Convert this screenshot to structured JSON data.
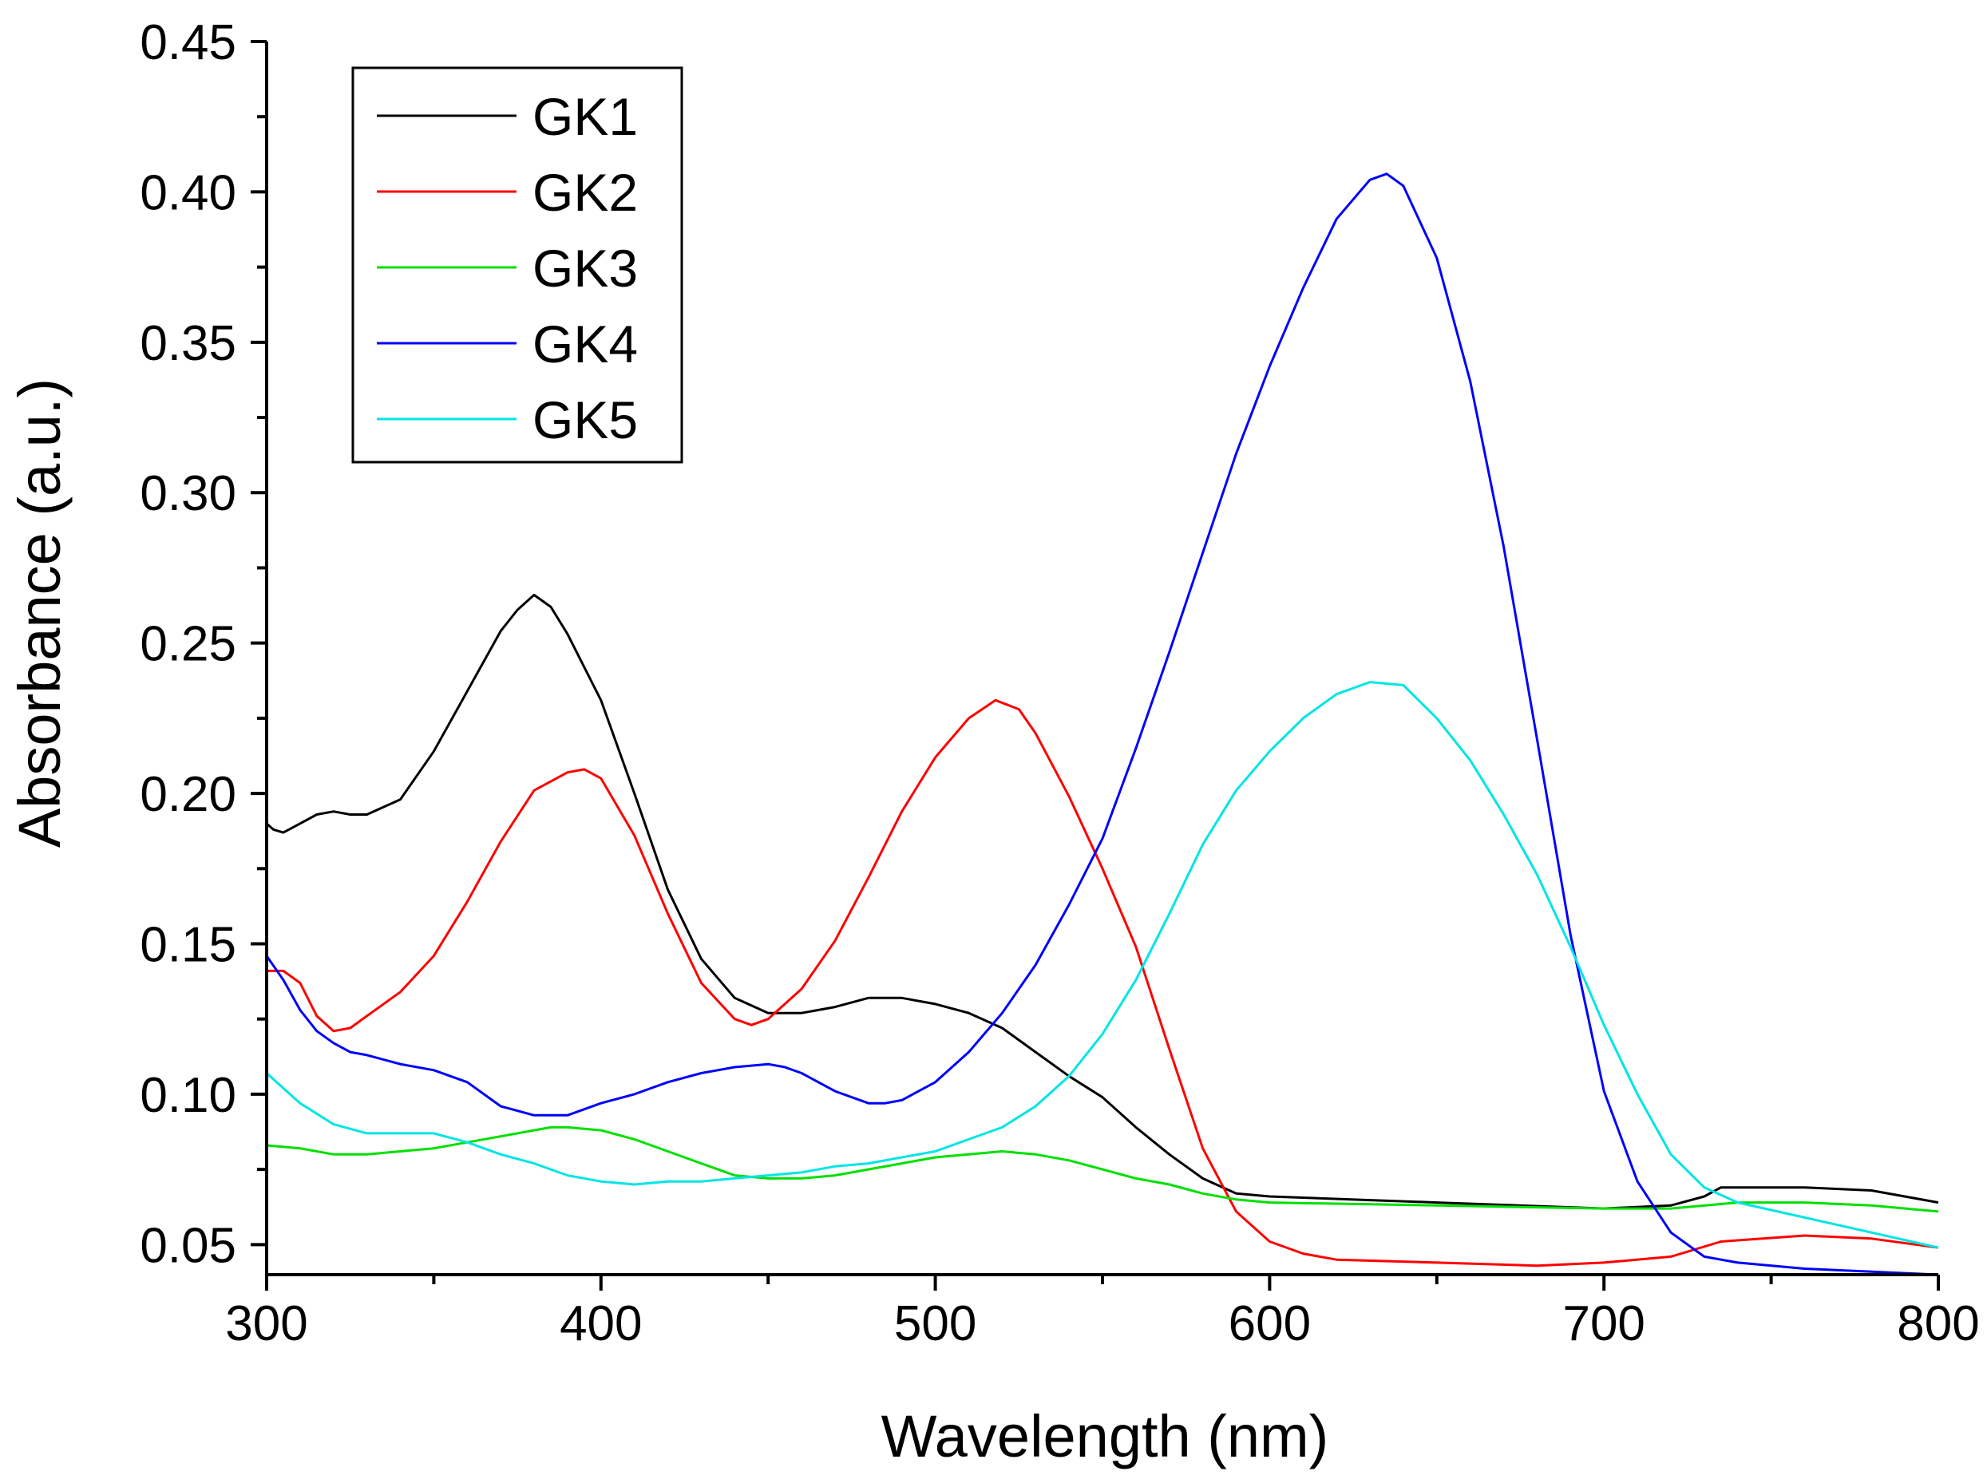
{
  "chart_data": {
    "type": "line",
    "title": "",
    "xlabel": "Wavelength (nm)",
    "ylabel": "Absorbance (a.u.)",
    "xlim": [
      300,
      800
    ],
    "ylim": [
      0.04,
      0.45
    ],
    "xticks": [
      300,
      400,
      500,
      600,
      700,
      800
    ],
    "xtick_labels": [
      "300",
      "400",
      "500",
      "600",
      "700",
      "800"
    ],
    "yticks": [
      0.05,
      0.1,
      0.15,
      0.2,
      0.25,
      0.3,
      0.35,
      0.4,
      0.45
    ],
    "ytick_labels": [
      "0.05",
      "0.10",
      "0.15",
      "0.20",
      "0.25",
      "0.30",
      "0.35",
      "0.40",
      "0.45"
    ],
    "grid": false,
    "legend_position": "top-left",
    "series": [
      {
        "name": "GK1",
        "color": "#000000",
        "x": [
          300,
          302,
          305,
          310,
          315,
          320,
          325,
          330,
          340,
          350,
          360,
          370,
          375,
          380,
          385,
          390,
          400,
          410,
          420,
          430,
          440,
          450,
          460,
          470,
          480,
          490,
          500,
          510,
          520,
          530,
          540,
          550,
          560,
          570,
          580,
          590,
          600,
          650,
          700,
          720,
          730,
          735,
          760,
          780,
          800
        ],
        "y": [
          0.19,
          0.188,
          0.187,
          0.19,
          0.193,
          0.194,
          0.193,
          0.193,
          0.198,
          0.214,
          0.234,
          0.254,
          0.261,
          0.266,
          0.262,
          0.253,
          0.231,
          0.2,
          0.168,
          0.145,
          0.132,
          0.127,
          0.127,
          0.129,
          0.132,
          0.132,
          0.13,
          0.127,
          0.122,
          0.114,
          0.106,
          0.099,
          0.089,
          0.08,
          0.072,
          0.067,
          0.066,
          0.064,
          0.062,
          0.063,
          0.066,
          0.069,
          0.069,
          0.068,
          0.064
        ]
      },
      {
        "name": "GK2",
        "color": "#ff0000",
        "x": [
          300,
          305,
          310,
          315,
          320,
          325,
          330,
          340,
          350,
          360,
          370,
          380,
          390,
          395,
          400,
          410,
          420,
          430,
          440,
          445,
          450,
          460,
          470,
          480,
          490,
          500,
          510,
          518,
          525,
          530,
          540,
          550,
          560,
          570,
          580,
          590,
          600,
          610,
          620,
          650,
          680,
          700,
          720,
          735,
          760,
          780,
          800
        ],
        "y": [
          0.141,
          0.141,
          0.137,
          0.126,
          0.121,
          0.122,
          0.126,
          0.134,
          0.146,
          0.164,
          0.184,
          0.201,
          0.207,
          0.208,
          0.205,
          0.186,
          0.16,
          0.137,
          0.125,
          0.123,
          0.125,
          0.135,
          0.151,
          0.172,
          0.194,
          0.212,
          0.225,
          0.231,
          0.228,
          0.22,
          0.199,
          0.175,
          0.149,
          0.115,
          0.082,
          0.061,
          0.051,
          0.047,
          0.045,
          0.044,
          0.043,
          0.044,
          0.046,
          0.051,
          0.053,
          0.052,
          0.049
        ]
      },
      {
        "name": "GK3",
        "color": "#00e000",
        "x": [
          300,
          310,
          320,
          330,
          340,
          350,
          360,
          370,
          380,
          385,
          390,
          400,
          410,
          420,
          430,
          440,
          450,
          460,
          470,
          480,
          490,
          500,
          510,
          520,
          530,
          540,
          550,
          560,
          570,
          580,
          590,
          600,
          650,
          700,
          720,
          740,
          760,
          780,
          800
        ],
        "y": [
          0.083,
          0.082,
          0.08,
          0.08,
          0.081,
          0.082,
          0.084,
          0.086,
          0.088,
          0.089,
          0.089,
          0.088,
          0.085,
          0.081,
          0.077,
          0.073,
          0.072,
          0.072,
          0.073,
          0.075,
          0.077,
          0.079,
          0.08,
          0.081,
          0.08,
          0.078,
          0.075,
          0.072,
          0.07,
          0.067,
          0.065,
          0.064,
          0.063,
          0.062,
          0.062,
          0.064,
          0.064,
          0.063,
          0.061
        ]
      },
      {
        "name": "GK4",
        "color": "#0000ff",
        "x": [
          300,
          305,
          310,
          315,
          320,
          325,
          330,
          340,
          350,
          360,
          370,
          380,
          390,
          400,
          410,
          420,
          430,
          440,
          450,
          455,
          460,
          470,
          480,
          485,
          490,
          500,
          510,
          520,
          530,
          540,
          550,
          560,
          570,
          580,
          590,
          600,
          610,
          620,
          630,
          635,
          640,
          650,
          660,
          670,
          680,
          690,
          700,
          710,
          720,
          730,
          740,
          760,
          780,
          800
        ],
        "y": [
          0.146,
          0.138,
          0.128,
          0.121,
          0.117,
          0.114,
          0.113,
          0.11,
          0.108,
          0.104,
          0.096,
          0.093,
          0.093,
          0.097,
          0.1,
          0.104,
          0.107,
          0.109,
          0.11,
          0.109,
          0.107,
          0.101,
          0.097,
          0.097,
          0.098,
          0.104,
          0.114,
          0.127,
          0.143,
          0.163,
          0.185,
          0.215,
          0.247,
          0.28,
          0.313,
          0.342,
          0.368,
          0.391,
          0.404,
          0.406,
          0.402,
          0.378,
          0.337,
          0.282,
          0.218,
          0.153,
          0.101,
          0.071,
          0.054,
          0.046,
          0.044,
          0.042,
          0.041,
          0.04
        ]
      },
      {
        "name": "GK5",
        "color": "#00e5e5",
        "x": [
          300,
          310,
          320,
          330,
          340,
          350,
          360,
          370,
          380,
          390,
          400,
          410,
          420,
          430,
          440,
          450,
          460,
          470,
          480,
          490,
          500,
          510,
          520,
          530,
          540,
          550,
          560,
          570,
          580,
          590,
          600,
          610,
          620,
          630,
          640,
          650,
          660,
          670,
          680,
          690,
          700,
          710,
          720,
          730,
          740,
          760,
          780,
          800
        ],
        "y": [
          0.107,
          0.097,
          0.09,
          0.087,
          0.087,
          0.087,
          0.084,
          0.08,
          0.077,
          0.073,
          0.071,
          0.07,
          0.071,
          0.071,
          0.072,
          0.073,
          0.074,
          0.076,
          0.077,
          0.079,
          0.081,
          0.085,
          0.089,
          0.096,
          0.106,
          0.12,
          0.138,
          0.16,
          0.183,
          0.201,
          0.214,
          0.225,
          0.233,
          0.237,
          0.236,
          0.225,
          0.211,
          0.193,
          0.173,
          0.149,
          0.123,
          0.1,
          0.08,
          0.069,
          0.064,
          0.059,
          0.054,
          0.049
        ]
      }
    ]
  }
}
